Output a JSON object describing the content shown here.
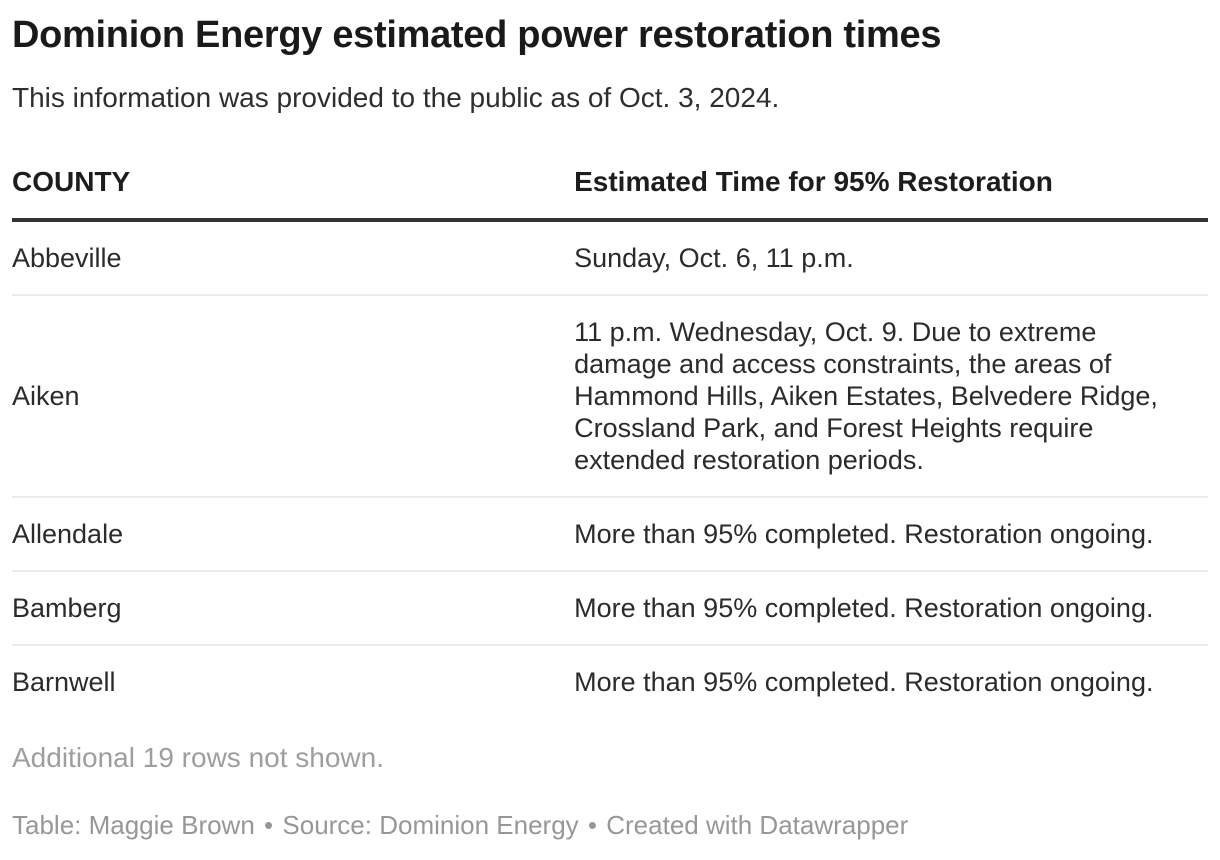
{
  "page": {
    "title": "Dominion Energy estimated power restoration times",
    "intro": "This information was provided to the public as of Oct. 3, 2024.",
    "note": "Additional 19 rows not shown.",
    "footer": {
      "byline": "Table: Maggie Brown",
      "source": "Source: Dominion Energy",
      "created": "Created with Datawrapper",
      "separator": "•"
    }
  },
  "colors": {
    "background": "#ffffff",
    "title_text": "#1a1a1a",
    "body_text": "#2b2b2b",
    "muted_text": "#9e9e9e",
    "footer_text": "#979797",
    "header_rule": "#333333",
    "row_divider": "#ececec"
  },
  "chart_data": {
    "type": "table",
    "title": "Dominion Energy estimated power restoration times",
    "subtitle": "This information was provided to the public as of Oct. 3, 2024.",
    "columns": [
      "COUNTY",
      "Estimated Time for 95% Restoration"
    ],
    "rows": [
      [
        "Abbeville",
        "Sunday, Oct. 6, 11 p.m."
      ],
      [
        "Aiken",
        "11 p.m. Wednesday, Oct. 9. Due to extreme damage and access constraints, the areas of Hammond Hills, Aiken Estates, Belvedere Ridge, Crossland Park, and Forest Heights require extended restoration periods."
      ],
      [
        "Allendale",
        "More than 95% completed. Restoration ongoing."
      ],
      [
        "Bamberg",
        "More than 95% completed. Restoration ongoing."
      ],
      [
        "Barnwell",
        "More than 95% completed. Restoration ongoing."
      ]
    ],
    "hidden_rows_note": "Additional 19 rows not shown.",
    "credit_line": "Table: Maggie Brown • Source: Dominion Energy • Created with Datawrapper",
    "layout_hints": {
      "header_rule": "thick dark border below header row",
      "row_dividers": "light gray lines between body rows",
      "grid": "horizontal only"
    }
  }
}
